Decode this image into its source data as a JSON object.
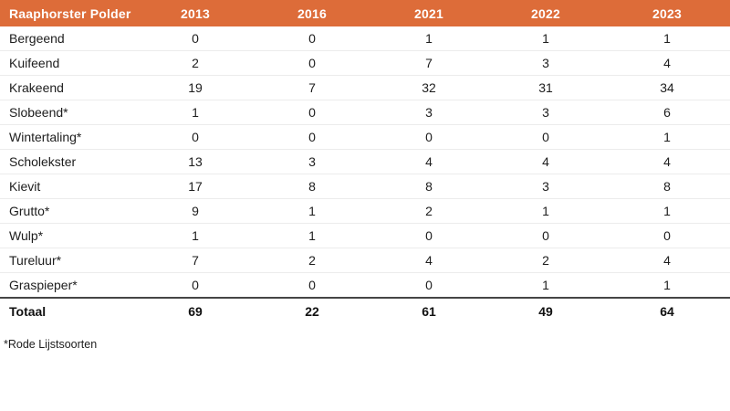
{
  "chart_data": {
    "type": "table",
    "title": "Raaphorster Polder",
    "categories": [
      "2013",
      "2016",
      "2021",
      "2022",
      "2023"
    ],
    "series": [
      {
        "name": "Bergeend",
        "values": [
          0,
          0,
          1,
          1,
          1
        ]
      },
      {
        "name": "Kuifeend",
        "values": [
          2,
          0,
          7,
          3,
          4
        ]
      },
      {
        "name": "Krakeend",
        "values": [
          19,
          7,
          32,
          31,
          34
        ]
      },
      {
        "name": "Slobeend*",
        "values": [
          1,
          0,
          3,
          3,
          6
        ]
      },
      {
        "name": "Wintertaling*",
        "values": [
          0,
          0,
          0,
          0,
          1
        ]
      },
      {
        "name": "Scholekster",
        "values": [
          13,
          3,
          4,
          4,
          4
        ]
      },
      {
        "name": "Kievit",
        "values": [
          17,
          8,
          8,
          3,
          8
        ]
      },
      {
        "name": "Grutto*",
        "values": [
          9,
          1,
          2,
          1,
          1
        ]
      },
      {
        "name": "Wulp*",
        "values": [
          1,
          1,
          0,
          0,
          0
        ]
      },
      {
        "name": "Tureluur*",
        "values": [
          7,
          2,
          4,
          2,
          4
        ]
      },
      {
        "name": "Graspieper*",
        "values": [
          0,
          0,
          0,
          1,
          1
        ]
      }
    ],
    "total": {
      "name": "Totaal",
      "values": [
        69,
        22,
        61,
        49,
        64
      ]
    },
    "footnote": "*Rode Lijstsoorten"
  },
  "colors": {
    "header_bg": "#dd6c39",
    "header_text": "#ffffff",
    "body_text": "#1d1d1d",
    "row_divider": "#ececec",
    "total_divider": "#454545",
    "background": "#ffffff"
  }
}
